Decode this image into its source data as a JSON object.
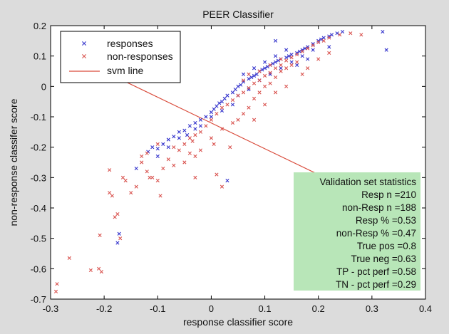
{
  "chart_data": {
    "type": "scatter",
    "title": "PEER Classifier",
    "xlabel": "response classifier score",
    "ylabel": "non-response classifer score",
    "xlim": [
      -0.3,
      0.4
    ],
    "ylim": [
      -0.7,
      0.2
    ],
    "xticks": [
      "-0.3",
      "-0.2",
      "-0.1",
      "0",
      "0.1",
      "0.2",
      "0.3",
      "0.4"
    ],
    "yticks": [
      "-0.7",
      "-0.6",
      "-0.5",
      "-0.4",
      "-0.3",
      "-0.2",
      "-0.1",
      "0",
      "0.1",
      "0.2"
    ],
    "grid": false,
    "legend_position": "top-left",
    "series": [
      {
        "name": "responses",
        "marker": "x",
        "color": "#3333cc",
        "points": [
          [
            -0.175,
            -0.515
          ],
          [
            -0.172,
            -0.485
          ],
          [
            -0.14,
            -0.27
          ],
          [
            -0.118,
            -0.215
          ],
          [
            -0.11,
            -0.2
          ],
          [
            -0.1,
            -0.205
          ],
          [
            -0.09,
            -0.19
          ],
          [
            -0.08,
            -0.175
          ],
          [
            -0.07,
            -0.165
          ],
          [
            -0.06,
            -0.15
          ],
          [
            -0.05,
            -0.145
          ],
          [
            -0.04,
            -0.13
          ],
          [
            -0.03,
            -0.12
          ],
          [
            -0.02,
            -0.11
          ],
          [
            -0.01,
            -0.1
          ],
          [
            0.0,
            -0.085
          ],
          [
            0.005,
            -0.075
          ],
          [
            0.01,
            -0.065
          ],
          [
            0.015,
            -0.055
          ],
          [
            0.02,
            -0.05
          ],
          [
            0.025,
            -0.04
          ],
          [
            0.03,
            -0.03
          ],
          [
            0.04,
            -0.02
          ],
          [
            0.045,
            -0.01
          ],
          [
            0.05,
            0.0
          ],
          [
            0.055,
            0.005
          ],
          [
            0.06,
            0.015
          ],
          [
            0.07,
            0.025
          ],
          [
            0.075,
            0.03
          ],
          [
            0.08,
            0.035
          ],
          [
            0.085,
            0.04
          ],
          [
            0.09,
            0.05
          ],
          [
            0.095,
            0.055
          ],
          [
            0.1,
            0.06
          ],
          [
            0.105,
            0.065
          ],
          [
            0.11,
            0.07
          ],
          [
            0.115,
            0.075
          ],
          [
            0.12,
            0.08
          ],
          [
            0.125,
            0.085
          ],
          [
            0.13,
            0.09
          ],
          [
            0.14,
            0.095
          ],
          [
            0.145,
            0.1
          ],
          [
            0.15,
            0.105
          ],
          [
            0.16,
            0.11
          ],
          [
            0.165,
            0.115
          ],
          [
            0.17,
            0.12
          ],
          [
            0.175,
            0.125
          ],
          [
            0.18,
            0.13
          ],
          [
            0.19,
            0.14
          ],
          [
            0.2,
            0.15
          ],
          [
            0.205,
            0.155
          ],
          [
            0.21,
            0.16
          ],
          [
            0.22,
            0.165
          ],
          [
            0.225,
            0.17
          ],
          [
            0.235,
            0.175
          ],
          [
            0.245,
            0.18
          ],
          [
            0.32,
            0.18
          ],
          [
            0.327,
            0.12
          ],
          [
            0.07,
            -0.01
          ],
          [
            0.09,
            0.02
          ],
          [
            0.11,
            0.04
          ],
          [
            0.13,
            0.06
          ],
          [
            0.15,
            0.08
          ],
          [
            0.17,
            0.1
          ],
          [
            0.19,
            0.12
          ],
          [
            0.05,
            -0.03
          ],
          [
            0.0,
            -0.1
          ],
          [
            -0.02,
            -0.13
          ],
          [
            -0.06,
            -0.17
          ],
          [
            -0.1,
            -0.23
          ],
          [
            0.06,
            0.04
          ],
          [
            0.08,
            0.06
          ],
          [
            0.1,
            0.08
          ],
          [
            0.12,
            0.1
          ],
          [
            0.14,
            0.12
          ],
          [
            0.03,
            -0.31
          ],
          [
            0.12,
            0.15
          ],
          [
            0.22,
            0.13
          ],
          [
            0.18,
            0.09
          ],
          [
            0.16,
            0.07
          ],
          [
            0.04,
            -0.06
          ],
          [
            0.02,
            -0.08
          ],
          [
            -0.03,
            -0.14
          ],
          [
            -0.08,
            -0.2
          ],
          [
            -0.045,
            -0.16
          ]
        ]
      },
      {
        "name": "non-responses",
        "marker": "x",
        "color": "#d9534f",
        "points": [
          [
            -0.29,
            -0.675
          ],
          [
            -0.288,
            -0.65
          ],
          [
            -0.265,
            -0.565
          ],
          [
            -0.225,
            -0.605
          ],
          [
            -0.21,
            -0.6
          ],
          [
            -0.205,
            -0.61
          ],
          [
            -0.208,
            -0.49
          ],
          [
            -0.19,
            -0.275
          ],
          [
            -0.19,
            -0.35
          ],
          [
            -0.185,
            -0.36
          ],
          [
            -0.18,
            -0.43
          ],
          [
            -0.175,
            -0.42
          ],
          [
            -0.17,
            -0.5
          ],
          [
            -0.165,
            -0.3
          ],
          [
            -0.16,
            -0.31
          ],
          [
            -0.15,
            -0.35
          ],
          [
            -0.14,
            -0.33
          ],
          [
            -0.13,
            -0.25
          ],
          [
            -0.12,
            -0.28
          ],
          [
            -0.115,
            -0.3
          ],
          [
            -0.11,
            -0.3
          ],
          [
            -0.1,
            -0.31
          ],
          [
            -0.095,
            -0.36
          ],
          [
            -0.09,
            -0.27
          ],
          [
            -0.08,
            -0.24
          ],
          [
            -0.07,
            -0.2
          ],
          [
            -0.06,
            -0.21
          ],
          [
            -0.05,
            -0.19
          ],
          [
            -0.04,
            -0.17
          ],
          [
            -0.035,
            -0.18
          ],
          [
            -0.03,
            -0.16
          ],
          [
            -0.02,
            -0.15
          ],
          [
            -0.01,
            -0.13
          ],
          [
            0.0,
            -0.11
          ],
          [
            0.01,
            -0.09
          ],
          [
            0.02,
            -0.07
          ],
          [
            0.03,
            -0.06
          ],
          [
            0.04,
            -0.045
          ],
          [
            0.05,
            -0.03
          ],
          [
            0.06,
            -0.02
          ],
          [
            0.07,
            -0.005
          ],
          [
            0.08,
            0.01
          ],
          [
            0.09,
            0.02
          ],
          [
            0.1,
            0.035
          ],
          [
            0.11,
            0.045
          ],
          [
            0.12,
            0.06
          ],
          [
            0.13,
            0.07
          ],
          [
            0.14,
            0.085
          ],
          [
            0.15,
            0.095
          ],
          [
            0.16,
            0.105
          ],
          [
            0.17,
            0.115
          ],
          [
            0.18,
            0.125
          ],
          [
            0.19,
            0.135
          ],
          [
            0.2,
            0.145
          ],
          [
            0.21,
            0.15
          ],
          [
            0.22,
            0.16
          ],
          [
            0.24,
            0.17
          ],
          [
            0.26,
            0.175
          ],
          [
            0.28,
            0.17
          ],
          [
            0.06,
            -0.09
          ],
          [
            0.07,
            -0.07
          ],
          [
            0.08,
            -0.04
          ],
          [
            0.09,
            -0.02
          ],
          [
            0.1,
            0.0
          ],
          [
            0.11,
            0.01
          ],
          [
            0.12,
            0.03
          ],
          [
            0.13,
            0.05
          ],
          [
            0.14,
            0.06
          ],
          [
            0.15,
            0.07
          ],
          [
            0.16,
            0.08
          ],
          [
            0.0,
            -0.17
          ],
          [
            0.02,
            -0.14
          ],
          [
            0.04,
            -0.12
          ],
          [
            0.05,
            -0.11
          ],
          [
            -0.07,
            -0.26
          ],
          [
            -0.05,
            -0.25
          ],
          [
            -0.03,
            -0.23
          ],
          [
            -0.02,
            -0.21
          ],
          [
            0.005,
            -0.19
          ],
          [
            0.035,
            -0.2
          ],
          [
            -0.03,
            -0.3
          ],
          [
            0.02,
            -0.33
          ],
          [
            0.01,
            -0.29
          ],
          [
            -0.04,
            -0.22
          ],
          [
            0.08,
            -0.11
          ],
          [
            0.1,
            -0.06
          ],
          [
            0.12,
            -0.02
          ],
          [
            0.14,
            0.0
          ],
          [
            0.17,
            0.04
          ],
          [
            0.2,
            0.09
          ],
          [
            0.22,
            0.11
          ],
          [
            0.18,
            0.06
          ],
          [
            -0.12,
            -0.22
          ],
          [
            -0.13,
            -0.23
          ],
          [
            -0.1,
            -0.19
          ],
          [
            0.06,
            0.02
          ],
          [
            0.07,
            0.04
          ],
          [
            0.09,
            0.05
          ],
          [
            0.11,
            0.07
          ],
          [
            0.13,
            0.09
          ]
        ]
      }
    ],
    "svm_line": {
      "name": "svm line",
      "color": "#d94a3a",
      "points": [
        [
          -0.195,
          0.045
        ],
        [
          0.265,
          -0.345
        ]
      ]
    },
    "annotation": {
      "title": "Validation set statistics",
      "background": "#b8e6b8",
      "lines": [
        "Resp n =210",
        "non-Resp n =188",
        "Resp % =0.53",
        "non-Resp % =0.47",
        "True pos =0.8",
        "True neg =0.63",
        "TP - pct perf =0.58",
        "TN - pct perf =0.29"
      ]
    }
  }
}
